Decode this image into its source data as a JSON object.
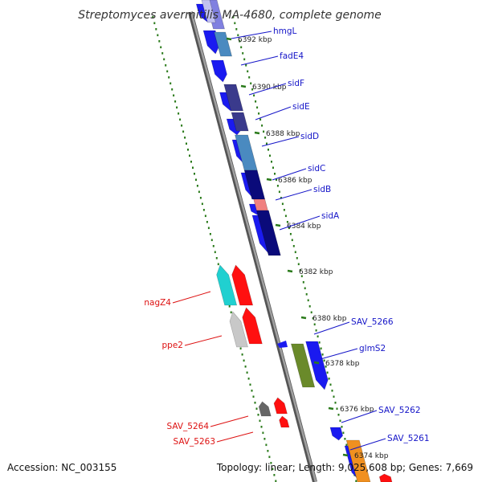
{
  "title": "Streptomyces avermitilis MA-4680, complete genome",
  "footer": {
    "accession": "Accession: NC_003155",
    "topology": "Topology: linear; Length: 9,025,608 bp; Genes: 7,669"
  },
  "colors": {
    "backbone": "#888888",
    "tick_dots": "#2a7a1a",
    "forward_label": "#1515c8",
    "reverse_label": "#dd1111",
    "gene_blue": "#1a1af0"
  },
  "scale_labels": [
    "6392 kbp",
    "6390 kbp",
    "6388 kbp",
    "6386 kbp",
    "6384 kbp",
    "6382 kbp",
    "6380 kbp",
    "6378 kbp",
    "6376 kbp",
    "6374 kbp"
  ],
  "forward_genes": [
    {
      "name": "hmgL",
      "color": "#8080e0"
    },
    {
      "name": "fadE4",
      "color": "#4a8ac0"
    },
    {
      "name": "sidF",
      "color": "#3a3a8c"
    },
    {
      "name": "sidE",
      "color": "#3a3a8c"
    },
    {
      "name": "sidD",
      "color": "#4a8ac0"
    },
    {
      "name": "sidC",
      "color": "#0a0a7a"
    },
    {
      "name": "sidB",
      "color": "#f08080"
    },
    {
      "name": "sidA",
      "color": "#0a0a7a"
    },
    {
      "name": "SAV_5266",
      "color": "#1a1af0"
    },
    {
      "name": "glmS2",
      "color": "#6a8a2a"
    },
    {
      "name": "SAV_5262",
      "color": "#1a1af0"
    },
    {
      "name": "SAV_5261",
      "color": "#f09020"
    }
  ],
  "reverse_genes": [
    {
      "name": "nagZ4",
      "color": "#20d0d0"
    },
    {
      "name": "ppe2",
      "color": "#c8c8c8"
    },
    {
      "name": "SAV_5264",
      "color": "#666666"
    },
    {
      "name": "SAV_5263",
      "color": "#ff1010"
    }
  ]
}
